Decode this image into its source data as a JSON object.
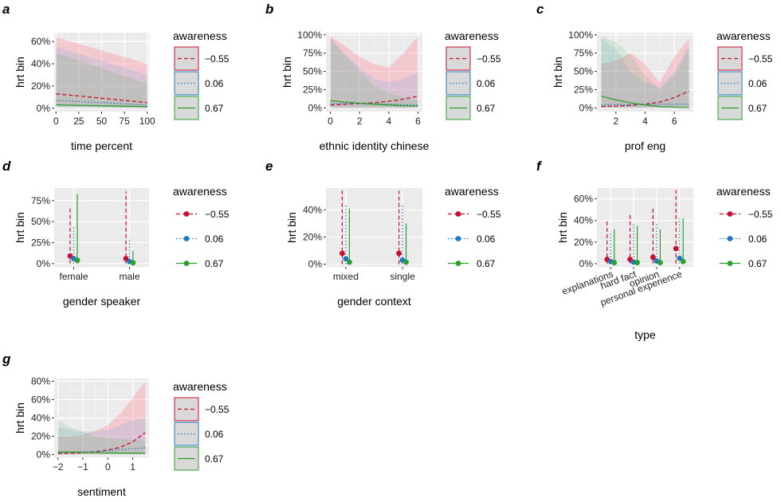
{
  "figure": {
    "legend_title": "awareness",
    "legend_levels": [
      "−0.55",
      "0.06",
      "0.67"
    ],
    "colors": {
      "low": "#c8102e",
      "mid": "#1f78c1",
      "high": "#2ca02c"
    },
    "series_names": [
      "awareness −0.55",
      "awareness 0.06",
      "awareness 0.67"
    ]
  },
  "chart_data": [
    {
      "id": "a",
      "letter": "a",
      "type": "line",
      "xlabel": "time percent",
      "ylabel": "hrt bin",
      "xlim": [
        -2,
        102
      ],
      "ylim": [
        -0.03,
        0.68
      ],
      "xticks": [
        0,
        25,
        50,
        75,
        100
      ],
      "xtick_labels": [
        "0",
        "25",
        "50",
        "75",
        "100"
      ],
      "yticks": [
        0,
        0.2,
        0.4,
        0.6
      ],
      "ytick_labels": [
        "0%",
        "20%",
        "40%",
        "60%"
      ],
      "x": [
        0,
        100
      ],
      "series": [
        {
          "name": "awareness −0.55",
          "y": [
            0.13,
            0.05
          ],
          "lower": [
            0.02,
            0.0
          ],
          "upper": [
            0.64,
            0.4
          ]
        },
        {
          "name": "awareness 0.06",
          "y": [
            0.07,
            0.03
          ],
          "lower": [
            0.01,
            0.0
          ],
          "upper": [
            0.55,
            0.3
          ]
        },
        {
          "name": "awareness 0.67",
          "y": [
            0.03,
            0.015
          ],
          "lower": [
            0.005,
            0.0
          ],
          "upper": [
            0.5,
            0.22
          ]
        }
      ]
    },
    {
      "id": "b",
      "letter": "b",
      "type": "line",
      "xlabel": "ethnic identity chinese",
      "ylabel": "hrt bin",
      "xlim": [
        -0.3,
        6.3
      ],
      "ylim": [
        -0.05,
        1.03
      ],
      "xticks": [
        0,
        2,
        4,
        6
      ],
      "xtick_labels": [
        "0",
        "2",
        "4",
        "6"
      ],
      "yticks": [
        0,
        0.25,
        0.5,
        0.75,
        1.0
      ],
      "ytick_labels": [
        "0%",
        "25%",
        "50%",
        "75%",
        "100%"
      ],
      "x": [
        0,
        1,
        2,
        3,
        4,
        5,
        6
      ],
      "series": [
        {
          "name": "awareness −0.55",
          "y": [
            0.04,
            0.05,
            0.06,
            0.07,
            0.09,
            0.12,
            0.16
          ],
          "lower": [
            0,
            0,
            0,
            0,
            0,
            0,
            0
          ],
          "upper": [
            0.98,
            0.85,
            0.7,
            0.6,
            0.55,
            0.75,
            0.98
          ]
        },
        {
          "name": "awareness 0.06",
          "y": [
            0.06,
            0.06,
            0.06,
            0.055,
            0.05,
            0.045,
            0.04
          ],
          "lower": [
            0,
            0,
            0,
            0,
            0,
            0,
            0
          ],
          "upper": [
            0.95,
            0.75,
            0.55,
            0.4,
            0.35,
            0.4,
            0.48
          ]
        },
        {
          "name": "awareness 0.67",
          "y": [
            0.1,
            0.08,
            0.065,
            0.05,
            0.04,
            0.03,
            0.025
          ],
          "lower": [
            0,
            0,
            0,
            0,
            0,
            0,
            0
          ],
          "upper": [
            0.95,
            0.72,
            0.5,
            0.3,
            0.2,
            0.15,
            0.1
          ]
        }
      ]
    },
    {
      "id": "c",
      "letter": "c",
      "type": "line",
      "xlabel": "prof eng",
      "ylabel": "hrt bin",
      "xlim": [
        0.7,
        7.3
      ],
      "ylim": [
        -0.05,
        1.03
      ],
      "xticks": [
        2,
        4,
        6
      ],
      "xtick_labels": [
        "2",
        "4",
        "6"
      ],
      "yticks": [
        0,
        0.25,
        0.5,
        0.75,
        1.0
      ],
      "ytick_labels": [
        "0%",
        "25%",
        "50%",
        "75%",
        "100%"
      ],
      "x": [
        1,
        2,
        3,
        4,
        5,
        6,
        7
      ],
      "series": [
        {
          "name": "awareness −0.55",
          "y": [
            0.02,
            0.025,
            0.035,
            0.05,
            0.08,
            0.14,
            0.23
          ],
          "lower": [
            0,
            0,
            0,
            0,
            0,
            0,
            0
          ],
          "upper": [
            0.6,
            0.65,
            0.75,
            0.6,
            0.35,
            0.7,
            0.95
          ]
        },
        {
          "name": "awareness 0.06",
          "y": [
            0.04,
            0.045,
            0.045,
            0.05,
            0.05,
            0.05,
            0.05
          ],
          "lower": [
            0,
            0,
            0,
            0,
            0,
            0,
            0
          ],
          "upper": [
            0.95,
            0.8,
            0.5,
            0.35,
            0.28,
            0.5,
            0.85
          ]
        },
        {
          "name": "awareness 0.67",
          "y": [
            0.16,
            0.11,
            0.07,
            0.04,
            0.02,
            0.01,
            0.005
          ],
          "lower": [
            0,
            0,
            0,
            0,
            0,
            0,
            0
          ],
          "upper": [
            0.98,
            0.9,
            0.72,
            0.45,
            0.25,
            0.45,
            0.8
          ]
        }
      ]
    },
    {
      "id": "d",
      "letter": "d",
      "type": "point-range",
      "xlabel": "gender speaker",
      "ylabel": "hrt bin",
      "ylim": [
        -0.04,
        0.9
      ],
      "categories": [
        "female",
        "male"
      ],
      "yticks": [
        0,
        0.25,
        0.5,
        0.75
      ],
      "ytick_labels": [
        "0%",
        "25%",
        "50%",
        "75%"
      ],
      "series": [
        {
          "name": "awareness −0.55",
          "values": [
            0.09,
            0.06
          ],
          "lower": [
            0,
            0
          ],
          "upper": [
            0.68,
            0.86
          ]
        },
        {
          "name": "awareness 0.06",
          "values": [
            0.06,
            0.025
          ],
          "lower": [
            0,
            0
          ],
          "upper": [
            0.45,
            0.3
          ]
        },
        {
          "name": "awareness 0.67",
          "values": [
            0.04,
            0.01
          ],
          "lower": [
            0,
            0
          ],
          "upper": [
            0.83,
            0.15
          ]
        }
      ]
    },
    {
      "id": "e",
      "letter": "e",
      "type": "point-range",
      "xlabel": "gender context",
      "ylabel": "hrt bin",
      "ylim": [
        -0.02,
        0.56
      ],
      "categories": [
        "mixed",
        "single"
      ],
      "yticks": [
        0,
        0.2,
        0.4
      ],
      "ytick_labels": [
        "0%",
        "20%",
        "40%"
      ],
      "series": [
        {
          "name": "awareness −0.55",
          "values": [
            0.08,
            0.08
          ],
          "lower": [
            0,
            0
          ],
          "upper": [
            0.54,
            0.54
          ]
        },
        {
          "name": "awareness 0.06",
          "values": [
            0.04,
            0.03
          ],
          "lower": [
            0,
            0
          ],
          "upper": [
            0.44,
            0.44
          ]
        },
        {
          "name": "awareness 0.67",
          "values": [
            0.015,
            0.015
          ],
          "lower": [
            0,
            0
          ],
          "upper": [
            0.41,
            0.3
          ]
        }
      ]
    },
    {
      "id": "f",
      "letter": "f",
      "type": "point-range",
      "xlabel": "type",
      "ylabel": "hrt bin",
      "ylim": [
        -0.03,
        0.7
      ],
      "categories": [
        "explanations",
        "hard fact",
        "opinion",
        "personal experience"
      ],
      "yticks": [
        0,
        0.2,
        0.4,
        0.6
      ],
      "ytick_labels": [
        "0%",
        "20%",
        "40%",
        "60%"
      ],
      "series": [
        {
          "name": "awareness −0.55",
          "values": [
            0.04,
            0.04,
            0.06,
            0.14
          ],
          "lower": [
            0,
            0,
            0,
            0
          ],
          "upper": [
            0.4,
            0.45,
            0.53,
            0.68
          ]
        },
        {
          "name": "awareness 0.06",
          "values": [
            0.02,
            0.015,
            0.025,
            0.05
          ],
          "lower": [
            0,
            0,
            0,
            0
          ],
          "upper": [
            0.3,
            0.38,
            0.38,
            0.42
          ]
        },
        {
          "name": "awareness 0.67",
          "values": [
            0.01,
            0.01,
            0.01,
            0.02
          ],
          "lower": [
            0,
            0,
            0,
            0
          ],
          "upper": [
            0.32,
            0.35,
            0.32,
            0.42
          ]
        }
      ]
    },
    {
      "id": "g",
      "letter": "g",
      "type": "line",
      "xlabel": "sentiment",
      "ylabel": "hrt bin",
      "xlim": [
        -2.15,
        1.65
      ],
      "ylim": [
        -0.03,
        0.83
      ],
      "xticks": [
        -2,
        -1,
        0,
        1
      ],
      "xtick_labels": [
        "−2",
        "−1",
        "0",
        "1"
      ],
      "yticks": [
        0,
        0.2,
        0.4,
        0.6,
        0.8
      ],
      "ytick_labels": [
        "0%",
        "20%",
        "40%",
        "60%",
        "80%"
      ],
      "x": [
        -2,
        -1.5,
        -1,
        -0.5,
        0,
        0.5,
        1,
        1.5
      ],
      "series": [
        {
          "name": "awareness −0.55",
          "y": [
            0.01,
            0.015,
            0.02,
            0.03,
            0.05,
            0.08,
            0.14,
            0.24
          ],
          "lower": [
            0,
            0,
            0,
            0,
            0,
            0,
            0,
            0.01
          ],
          "upper": [
            0.2,
            0.2,
            0.22,
            0.26,
            0.32,
            0.45,
            0.62,
            0.8
          ]
        },
        {
          "name": "awareness 0.06",
          "y": [
            0.02,
            0.025,
            0.03,
            0.035,
            0.045,
            0.055,
            0.065,
            0.075
          ],
          "lower": [
            0,
            0,
            0,
            0,
            0,
            0,
            0,
            0
          ],
          "upper": [
            0.3,
            0.27,
            0.25,
            0.25,
            0.27,
            0.32,
            0.37,
            0.4
          ]
        },
        {
          "name": "awareness 0.67",
          "y": [
            0.03,
            0.028,
            0.025,
            0.022,
            0.02,
            0.018,
            0.016,
            0.014
          ],
          "lower": [
            0,
            0,
            0,
            0,
            0,
            0,
            0,
            0
          ],
          "upper": [
            0.38,
            0.3,
            0.25,
            0.2,
            0.18,
            0.17,
            0.16,
            0.15
          ]
        }
      ]
    }
  ]
}
